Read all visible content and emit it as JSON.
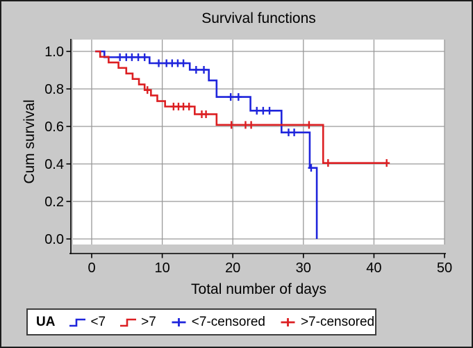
{
  "figure": {
    "title": "Survival functions"
  },
  "axes": {
    "x": {
      "label": "Total number of days",
      "tick_labels": [
        "0",
        "10",
        "20",
        "30",
        "40",
        "50"
      ],
      "tick_values": [
        0,
        10,
        20,
        30,
        40,
        50
      ],
      "range": [
        0,
        50
      ]
    },
    "y": {
      "label": "Cum survival",
      "tick_labels": [
        "0.0",
        "0.2",
        "0.4",
        "0.6",
        "0.8",
        "1.0"
      ],
      "tick_values": [
        0,
        0.2,
        0.4,
        0.6,
        0.8,
        1.0
      ],
      "range": [
        0,
        1
      ]
    }
  },
  "legend": {
    "title": "UA",
    "items": [
      {
        "label": "<7",
        "type": "step-line",
        "color": "#1F25DC"
      },
      {
        "label": ">7",
        "type": "step-line",
        "color": "#DC1F22"
      },
      {
        "label": "<7-censored",
        "type": "plus-marker",
        "color": "#1F25DC"
      },
      {
        "label": ">7-censored",
        "type": "plus-marker",
        "color": "#DC1F22"
      }
    ]
  },
  "colors": {
    "background": "#c9c9c9",
    "plot_background": "#ffffff",
    "gridline": "#999999",
    "axis_line": "#000000",
    "series_lt7": "#1F25DC",
    "series_gt7": "#DC1F22"
  },
  "chart_data": {
    "type": "line",
    "subtype": "kaplan-meier-survival-step",
    "title": "Survival functions",
    "xlabel": "Total number of days",
    "ylabel": "Cum survival",
    "xlim": [
      0,
      50
    ],
    "ylim": [
      0,
      1
    ],
    "grid": true,
    "legend_position": "bottom",
    "series": [
      {
        "name": "<7",
        "color": "#1F25DC",
        "steps": [
          [
            0.5,
            1.0
          ],
          [
            1.8,
            0.969
          ],
          [
            8.2,
            0.937
          ],
          [
            13.9,
            0.902
          ],
          [
            16.6,
            0.845
          ],
          [
            17.7,
            0.757
          ],
          [
            22.5,
            0.684
          ],
          [
            26.9,
            0.568
          ],
          [
            30.9,
            0.379
          ],
          [
            31.9,
            0.0
          ]
        ],
        "censored": [
          [
            4.0,
            0.969
          ],
          [
            4.9,
            0.969
          ],
          [
            5.7,
            0.969
          ],
          [
            6.6,
            0.969
          ],
          [
            7.5,
            0.969
          ],
          [
            9.5,
            0.937
          ],
          [
            10.6,
            0.937
          ],
          [
            11.4,
            0.937
          ],
          [
            12.2,
            0.937
          ],
          [
            13.0,
            0.937
          ],
          [
            14.8,
            0.902
          ],
          [
            15.9,
            0.902
          ],
          [
            19.7,
            0.757
          ],
          [
            20.8,
            0.757
          ],
          [
            23.4,
            0.684
          ],
          [
            24.3,
            0.684
          ],
          [
            25.2,
            0.684
          ],
          [
            27.9,
            0.568
          ],
          [
            28.7,
            0.568
          ],
          [
            31.1,
            0.379
          ]
        ]
      },
      {
        "name": ">7",
        "color": "#DC1F22",
        "steps": [
          [
            0.5,
            1.0
          ],
          [
            1.2,
            0.971
          ],
          [
            2.4,
            0.941
          ],
          [
            3.8,
            0.912
          ],
          [
            4.9,
            0.882
          ],
          [
            5.8,
            0.853
          ],
          [
            6.7,
            0.824
          ],
          [
            7.5,
            0.794
          ],
          [
            8.4,
            0.765
          ],
          [
            9.3,
            0.735
          ],
          [
            10.4,
            0.706
          ],
          [
            14.6,
            0.665
          ],
          [
            17.7,
            0.608
          ],
          [
            32.8,
            0.405
          ],
          [
            42.0,
            0.405
          ]
        ],
        "censored": [
          [
            7.9,
            0.794
          ],
          [
            11.6,
            0.706
          ],
          [
            12.3,
            0.706
          ],
          [
            13.0,
            0.706
          ],
          [
            13.8,
            0.706
          ],
          [
            15.6,
            0.665
          ],
          [
            16.2,
            0.665
          ],
          [
            19.8,
            0.608
          ],
          [
            21.8,
            0.608
          ],
          [
            22.6,
            0.608
          ],
          [
            30.8,
            0.608
          ],
          [
            33.5,
            0.405
          ],
          [
            41.8,
            0.405
          ]
        ]
      }
    ]
  }
}
